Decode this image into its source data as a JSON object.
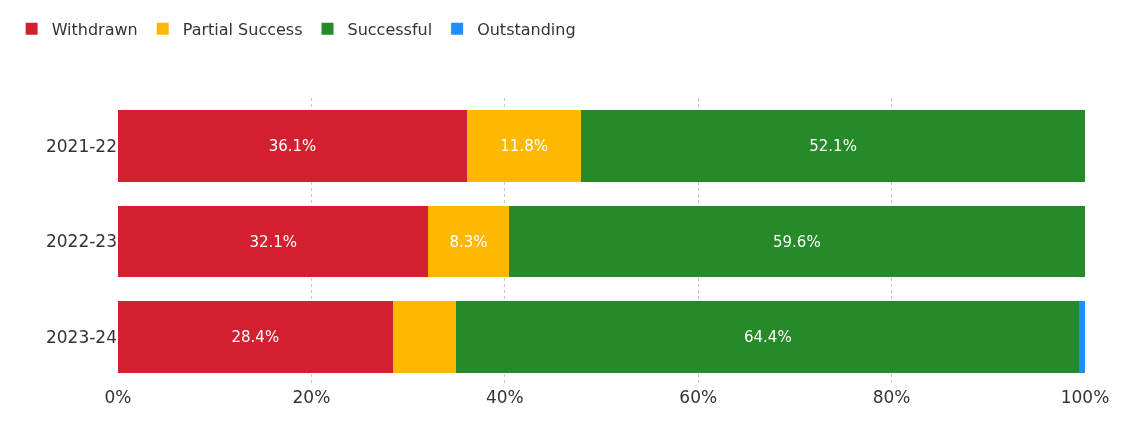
{
  "chart_data": {
    "type": "bar",
    "orientation": "horizontal",
    "stacked": true,
    "categories": [
      "2021-22",
      "2022-23",
      "2023-24"
    ],
    "series": [
      {
        "name": "Withdrawn",
        "color": "#d32030",
        "values": [
          36.1,
          32.1,
          28.4
        ],
        "value_labels": [
          "36.1%",
          "32.1%",
          "28.4%"
        ]
      },
      {
        "name": "Partial Success",
        "color": "#fdb900",
        "values": [
          11.8,
          8.3,
          6.6
        ],
        "value_labels": [
          "11.8%",
          "8.3%",
          null
        ]
      },
      {
        "name": "Successful",
        "color": "#268a28",
        "values": [
          52.1,
          59.6,
          64.4
        ],
        "value_labels": [
          "52.1%",
          "59.6%",
          "64.4%"
        ]
      },
      {
        "name": "Outstanding",
        "color": "#1f8fff",
        "values": [
          0,
          0,
          0.6
        ],
        "value_labels": [
          null,
          null,
          null
        ]
      }
    ],
    "xlim": [
      0,
      100
    ],
    "xticks": [
      {
        "value": 0,
        "label": "0%"
      },
      {
        "value": 20,
        "label": "20%"
      },
      {
        "value": 40,
        "label": "40%"
      },
      {
        "value": 60,
        "label": "60%"
      },
      {
        "value": 80,
        "label": "80%"
      },
      {
        "value": 100,
        "label": "100%"
      }
    ],
    "grid": "x",
    "legend": "top left"
  }
}
